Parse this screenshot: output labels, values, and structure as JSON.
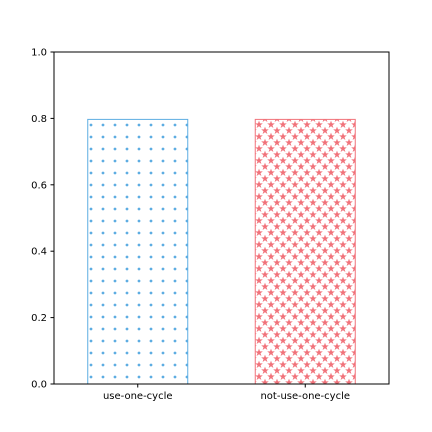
{
  "chart_data": {
    "type": "bar",
    "categories": [
      "use-one-cycle",
      "not-use-one-cycle"
    ],
    "values": [
      0.797,
      0.797
    ],
    "ylim": [
      0.0,
      1.0
    ],
    "yticks": [
      "0.0",
      "0.2",
      "0.4",
      "0.6",
      "0.8",
      "1.0"
    ],
    "title": "",
    "xlabel": "",
    "ylabel": "",
    "grid": false,
    "bar_styles": [
      {
        "edge_color": "#5dade2",
        "hatch": "dots"
      },
      {
        "edge_color": "#f1737b",
        "hatch": "stars"
      }
    ]
  }
}
